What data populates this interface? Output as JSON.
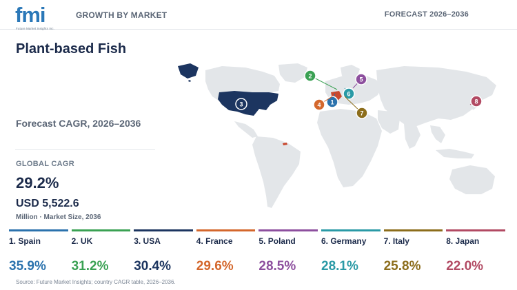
{
  "header": {
    "logo_text": "fmi",
    "logo_subtext": "Future Market Insights Inc.",
    "section_label": "GROWTH BY MARKET",
    "forecast_label": "FORECAST 2026–2036"
  },
  "summary": {
    "title": "Plant-based Fish",
    "subtitle": "Forecast CAGR, 2026–2036",
    "global_cagr_label": "GLOBAL CAGR",
    "global_cagr_value": "29.2%",
    "market_size_value": "USD 5,522.6",
    "market_size_unit": "Million · Market Size, 2036"
  },
  "colors": {
    "map_land": "#e3e6e9",
    "highlight_usa": "#1c3560",
    "highlight_europe": "#c9482e"
  },
  "chart_data": {
    "type": "bar",
    "title": "Plant-based Fish",
    "categories": [
      "Spain",
      "UK",
      "USA",
      "France",
      "Poland",
      "Germany",
      "Italy",
      "Japan"
    ],
    "values": [
      35.9,
      31.2,
      30.4,
      29.6,
      28.5,
      28.1,
      25.8,
      22.0
    ],
    "unit": "%",
    "ranks": [
      1,
      2,
      3,
      4,
      5,
      6,
      7,
      8
    ],
    "labels": [
      "1. Spain",
      "2. UK",
      "3. USA",
      "4. France",
      "5. Poland",
      "6. Germany",
      "7. Italy",
      "8. Japan"
    ],
    "value_labels": [
      "35.9%",
      "31.2%",
      "30.4%",
      "29.6%",
      "28.5%",
      "28.1%",
      "25.8%",
      "22.0%"
    ],
    "colors": [
      "#2b72ad",
      "#3aa153",
      "#1c3560",
      "#d4672c",
      "#8d4f9e",
      "#2a9aa6",
      "#8c6d1b",
      "#b24a63"
    ]
  },
  "footer": {
    "source": "Source: Future Market Insights; country CAGR table, 2026–2036."
  }
}
